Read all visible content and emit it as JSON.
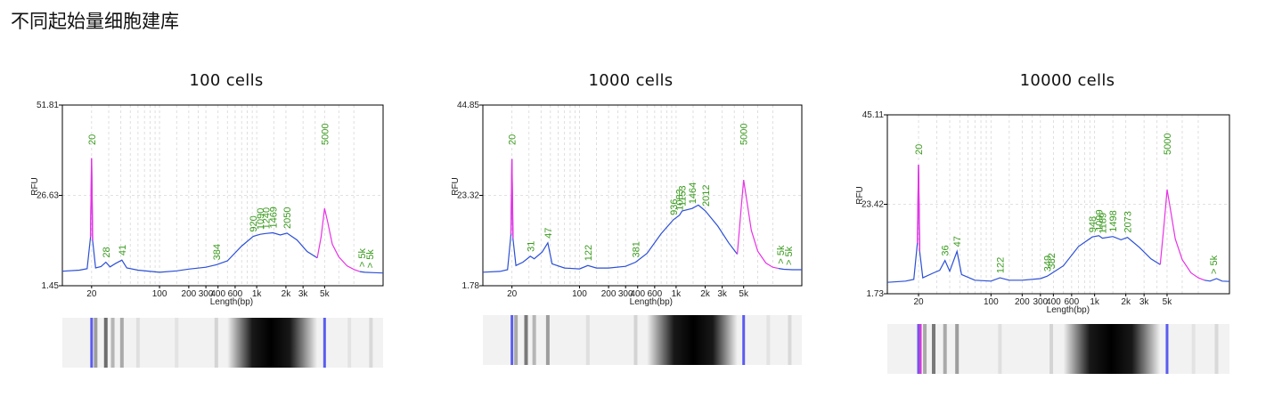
{
  "page": {
    "title": "不同起始量细胞建库"
  },
  "colors": {
    "plot_line": "#2b4fd6",
    "marker_peak": "#e832e6",
    "annotation": "#3a9a1e",
    "axis": "#000000",
    "grid": "#d7d7d7",
    "gel_marker_blue": "#5a5cf0",
    "gel_marker_magenta": "#d23ad8"
  },
  "chart_data": [
    {
      "type": "line",
      "title": "100 cells",
      "ylabel": "RFU",
      "xlabel": "Length(bp)",
      "x_scale": "log",
      "y_ticks": [
        "51.81",
        "26.63",
        "1.45"
      ],
      "ylim": [
        1.45,
        51.81
      ],
      "x_ticks": [
        "20",
        "100",
        "200",
        "300",
        "400",
        "600",
        "1k",
        "2k",
        "3k",
        "5k"
      ],
      "x_tick_values": [
        20,
        100,
        200,
        300,
        400,
        600,
        1000,
        2000,
        3000,
        5000
      ],
      "xlim": [
        10,
        20000
      ],
      "annotations": [
        {
          "text": "20",
          "x": 20
        },
        {
          "text": "28",
          "x": 28
        },
        {
          "text": "41",
          "x": 41
        },
        {
          "text": "384",
          "x": 384
        },
        {
          "text": "920",
          "x": 920
        },
        {
          "text": "1090",
          "x": 1090
        },
        {
          "text": "1240",
          "x": 1240
        },
        {
          "text": "1469",
          "x": 1469
        },
        {
          "text": "2050",
          "x": 2050
        },
        {
          "text": "5000",
          "x": 5000
        },
        {
          "text": "> 5k",
          "x": 12000
        },
        {
          "text": "> 5k",
          "x": 14500
        }
      ],
      "series": [
        {
          "points": [
            [
              10,
              5.5
            ],
            [
              15,
              5.8
            ],
            [
              18,
              6.2
            ],
            [
              19.5,
              15
            ],
            [
              20,
              37
            ],
            [
              20.5,
              14
            ],
            [
              22,
              6.4
            ],
            [
              25,
              6.8
            ],
            [
              28,
              8.0
            ],
            [
              31,
              6.7
            ],
            [
              35,
              7.6
            ],
            [
              41,
              8.6
            ],
            [
              46,
              6.4
            ],
            [
              60,
              5.8
            ],
            [
              100,
              5.2
            ],
            [
              150,
              5.6
            ],
            [
              200,
              6.1
            ],
            [
              300,
              6.6
            ],
            [
              384,
              7.3
            ],
            [
              500,
              8.4
            ],
            [
              700,
              12.5
            ],
            [
              920,
              15.2
            ],
            [
              1090,
              15.8
            ],
            [
              1240,
              16.0
            ],
            [
              1469,
              16.2
            ],
            [
              1750,
              15.6
            ],
            [
              2050,
              16.1
            ],
            [
              2600,
              14.2
            ],
            [
              3300,
              11.0
            ],
            [
              4200,
              9.2
            ]
          ]
        },
        {
          "name": "marker",
          "points": [
            [
              4200,
              9.2
            ],
            [
              4600,
              15
            ],
            [
              5000,
              23
            ],
            [
              5400,
              19
            ],
            [
              6000,
              13
            ],
            [
              7000,
              9.5
            ],
            [
              8500,
              7.0
            ],
            [
              10000,
              6.0
            ],
            [
              11500,
              5.4
            ]
          ]
        },
        {
          "points": [
            [
              11500,
              5.4
            ],
            [
              13000,
              5.2
            ],
            [
              16000,
              5.1
            ],
            [
              20000,
              5.0
            ]
          ]
        }
      ],
      "gel_bands": [
        {
          "x": 20,
          "type": "marker-blue"
        },
        {
          "x": 22,
          "intensity": 0.35
        },
        {
          "x": 28,
          "intensity": 0.55
        },
        {
          "x": 33,
          "intensity": 0.25
        },
        {
          "x": 41,
          "intensity": 0.3
        },
        {
          "x": 60,
          "intensity": 0.08
        },
        {
          "x": 150,
          "intensity": 0.06
        },
        {
          "x": 384,
          "intensity": 0.12
        },
        {
          "x": 5000,
          "type": "marker-blue"
        },
        {
          "x": 9000,
          "intensity": 0.06
        },
        {
          "x": 15000,
          "intensity": 0.1
        }
      ],
      "gel_smear": {
        "start": 500,
        "peak_start": 900,
        "peak_end": 2200,
        "end": 4200,
        "max": 1.0
      }
    },
    {
      "type": "line",
      "title": "1000 cells",
      "ylabel": "RFU",
      "xlabel": "Length(bp)",
      "x_scale": "log",
      "y_ticks": [
        "44.85",
        "23.32",
        "1.78"
      ],
      "ylim": [
        1.78,
        44.85
      ],
      "x_ticks": [
        "20",
        "100",
        "200",
        "300",
        "400",
        "600",
        "1k",
        "2k",
        "3k",
        "5k"
      ],
      "x_tick_values": [
        20,
        100,
        200,
        300,
        400,
        600,
        1000,
        2000,
        3000,
        5000
      ],
      "xlim": [
        10,
        20000
      ],
      "annotations": [
        {
          "text": "20",
          "x": 20
        },
        {
          "text": "31",
          "x": 31
        },
        {
          "text": "47",
          "x": 47
        },
        {
          "text": "122",
          "x": 122
        },
        {
          "text": "381",
          "x": 381
        },
        {
          "text": "936",
          "x": 936
        },
        {
          "text": "1083",
          "x": 1083
        },
        {
          "text": "1153",
          "x": 1153
        },
        {
          "text": "1464",
          "x": 1464
        },
        {
          "text": "2012",
          "x": 2012
        },
        {
          "text": "5000",
          "x": 5000
        },
        {
          "text": "> 5k",
          "x": 12000
        },
        {
          "text": "> 5k",
          "x": 14500
        }
      ],
      "series": [
        {
          "points": [
            [
              10,
              5.0
            ],
            [
              15,
              5.2
            ],
            [
              18,
              5.6
            ],
            [
              19.5,
              14
            ],
            [
              20,
              32
            ],
            [
              20.5,
              13
            ],
            [
              22,
              6.6
            ],
            [
              26,
              7.4
            ],
            [
              31,
              8.8
            ],
            [
              34,
              8.2
            ],
            [
              41,
              9.8
            ],
            [
              47,
              12.0
            ],
            [
              52,
              7.0
            ],
            [
              70,
              6.0
            ],
            [
              100,
              5.8
            ],
            [
              122,
              6.6
            ],
            [
              150,
              6.0
            ],
            [
              200,
              6.0
            ],
            [
              300,
              6.4
            ],
            [
              381,
              7.4
            ],
            [
              500,
              9.5
            ],
            [
              700,
              14.2
            ],
            [
              936,
              17.5
            ],
            [
              1083,
              18.6
            ],
            [
              1153,
              19.6
            ],
            [
              1464,
              20.2
            ],
            [
              1700,
              21.0
            ],
            [
              2012,
              19.6
            ],
            [
              2700,
              16.0
            ],
            [
              3500,
              12.0
            ],
            [
              4300,
              9.3
            ]
          ]
        },
        {
          "name": "marker",
          "points": [
            [
              4300,
              9.3
            ],
            [
              4700,
              20
            ],
            [
              5000,
              27
            ],
            [
              5400,
              22
            ],
            [
              6000,
              15
            ],
            [
              7000,
              10
            ],
            [
              8500,
              7.2
            ],
            [
              10000,
              6.2
            ],
            [
              11500,
              5.9
            ]
          ]
        },
        {
          "points": [
            [
              11500,
              5.9
            ],
            [
              13000,
              5.7
            ],
            [
              16000,
              5.6
            ],
            [
              20000,
              5.6
            ]
          ]
        }
      ],
      "gel_bands": [
        {
          "x": 20,
          "type": "marker-blue"
        },
        {
          "x": 22,
          "intensity": 0.3
        },
        {
          "x": 28,
          "intensity": 0.5
        },
        {
          "x": 34,
          "intensity": 0.25
        },
        {
          "x": 47,
          "intensity": 0.35
        },
        {
          "x": 122,
          "intensity": 0.08
        },
        {
          "x": 381,
          "intensity": 0.12
        },
        {
          "x": 5000,
          "type": "marker-blue"
        },
        {
          "x": 9000,
          "intensity": 0.06
        },
        {
          "x": 15000,
          "intensity": 0.1
        }
      ],
      "gel_smear": {
        "start": 500,
        "peak_start": 950,
        "peak_end": 2400,
        "end": 4300,
        "max": 1.0
      }
    },
    {
      "type": "line",
      "title": "10000 cells",
      "ylabel": "RFU",
      "xlabel": "Length(bp)",
      "x_scale": "log",
      "y_ticks": [
        "45.11",
        "23.42",
        "1.73"
      ],
      "ylim": [
        1.73,
        45.11
      ],
      "x_ticks": [
        "20",
        "100",
        "200",
        "300",
        "400",
        "600",
        "1k",
        "2k",
        "3k",
        "5k"
      ],
      "x_tick_values": [
        20,
        100,
        200,
        300,
        400,
        600,
        1000,
        2000,
        3000,
        5000
      ],
      "xlim": [
        10,
        20000
      ],
      "annotations": [
        {
          "text": "20",
          "x": 20
        },
        {
          "text": "36",
          "x": 36
        },
        {
          "text": "47",
          "x": 47
        },
        {
          "text": "122",
          "x": 122
        },
        {
          "text": "349",
          "x": 349
        },
        {
          "text": "382",
          "x": 382
        },
        {
          "text": "948",
          "x": 948
        },
        {
          "text": "1099",
          "x": 1099
        },
        {
          "text": "1189",
          "x": 1189
        },
        {
          "text": "1498",
          "x": 1498
        },
        {
          "text": "2073",
          "x": 2073
        },
        {
          "text": "5000",
          "x": 5000
        },
        {
          "text": "> 5k",
          "x": 14000
        }
      ],
      "series": [
        {
          "points": [
            [
              10,
              4.5
            ],
            [
              15,
              4.8
            ],
            [
              18,
              5.2
            ],
            [
              19.5,
              14
            ],
            [
              20,
              33
            ],
            [
              20.5,
              12
            ],
            [
              22,
              5.6
            ],
            [
              28,
              6.8
            ],
            [
              32,
              7.4
            ],
            [
              36,
              9.8
            ],
            [
              40,
              7.2
            ],
            [
              47,
              12.0
            ],
            [
              52,
              6.4
            ],
            [
              70,
              5.0
            ],
            [
              100,
              4.8
            ],
            [
              122,
              5.6
            ],
            [
              150,
              5.0
            ],
            [
              200,
              5.0
            ],
            [
              300,
              5.4
            ],
            [
              349,
              6.0
            ],
            [
              382,
              6.6
            ],
            [
              500,
              8.5
            ],
            [
              700,
              13.2
            ],
            [
              948,
              15.5
            ],
            [
              1099,
              15.8
            ],
            [
              1189,
              15.2
            ],
            [
              1498,
              15.6
            ],
            [
              1800,
              14.8
            ],
            [
              2073,
              15.4
            ],
            [
              2700,
              13.0
            ],
            [
              3500,
              10.2
            ],
            [
              4300,
              8.8
            ]
          ]
        },
        {
          "name": "marker",
          "points": [
            [
              4300,
              8.8
            ],
            [
              4700,
              19
            ],
            [
              5000,
              27
            ],
            [
              5400,
              22
            ],
            [
              6000,
              15
            ],
            [
              7000,
              10
            ],
            [
              8500,
              6.8
            ],
            [
              10000,
              5.6
            ],
            [
              11500,
              5.0
            ]
          ]
        },
        {
          "points": [
            [
              11500,
              5.0
            ],
            [
              13000,
              4.8
            ],
            [
              15000,
              5.4
            ],
            [
              17000,
              4.8
            ],
            [
              20000,
              4.7
            ]
          ]
        }
      ],
      "gel_bands": [
        {
          "x": 20,
          "type": "marker-blue"
        },
        {
          "x": 20.8,
          "type": "marker-magenta"
        },
        {
          "x": 23,
          "intensity": 0.3
        },
        {
          "x": 28,
          "intensity": 0.5
        },
        {
          "x": 36,
          "intensity": 0.3
        },
        {
          "x": 47,
          "intensity": 0.35
        },
        {
          "x": 122,
          "intensity": 0.08
        },
        {
          "x": 382,
          "intensity": 0.12
        },
        {
          "x": 5000,
          "type": "marker-blue"
        },
        {
          "x": 9000,
          "intensity": 0.06
        },
        {
          "x": 15000,
          "intensity": 0.1
        }
      ],
      "gel_smear": {
        "start": 500,
        "peak_start": 900,
        "peak_end": 2300,
        "end": 4300,
        "max": 1.0
      }
    }
  ]
}
